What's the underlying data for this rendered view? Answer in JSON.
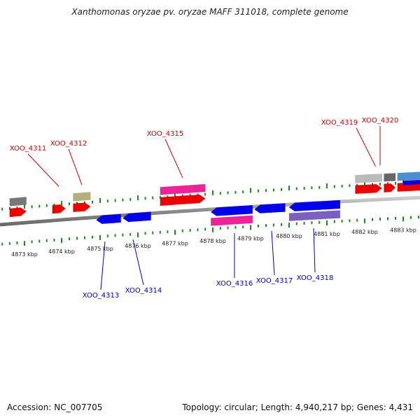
{
  "title": "Xanthomonas oryzae pv. oryzae MAFF 311018, complete genome",
  "footer": {
    "accession": "Accession: NC_007705",
    "summary": "Topology: circular; Length: 4,940,217 bp; Genes: 4,431"
  },
  "scale": {
    "unit": "kbp",
    "major_ticks": [
      {
        "kbp": 4873,
        "label": "4873 kbp"
      },
      {
        "kbp": 4874,
        "label": "4874 kbp"
      },
      {
        "kbp": 4875,
        "label": "4875 kbp"
      },
      {
        "kbp": 4876,
        "label": "4876 kbp"
      },
      {
        "kbp": 4877,
        "label": "4877 kbp"
      },
      {
        "kbp": 4878,
        "label": "4878 kbp"
      },
      {
        "kbp": 4879,
        "label": "4879 kbp"
      },
      {
        "kbp": 4880,
        "label": "4880 kbp"
      },
      {
        "kbp": 4881,
        "label": "4881 kbp"
      },
      {
        "kbp": 4882,
        "label": "4882 kbp"
      },
      {
        "kbp": 4883,
        "label": "4883 kbp"
      }
    ]
  },
  "genes": {
    "forward_labeled": [
      {
        "name": "XOO_4311",
        "start_kbp": 4873.75,
        "end_kbp": 4874.1,
        "color": "#ee0000"
      },
      {
        "name": "XOO_4312",
        "start_kbp": 4874.3,
        "end_kbp": 4874.75,
        "color": "#ee0000"
      },
      {
        "name": "XOO_4315",
        "start_kbp": 4876.6,
        "end_kbp": 4877.8,
        "color": "#ee0000"
      },
      {
        "name": "XOO_4319",
        "start_kbp": 4881.75,
        "end_kbp": 4882.45,
        "color": "#ee0000"
      },
      {
        "name": "XOO_4320",
        "start_kbp": 4882.5,
        "end_kbp": 4882.8,
        "color": "#ee0000"
      }
    ],
    "reverse_labeled": [
      {
        "name": "XOO_4313",
        "start_kbp": 4874.9,
        "end_kbp": 4875.55,
        "color": "#0000ee"
      },
      {
        "name": "XOO_4314",
        "start_kbp": 4875.6,
        "end_kbp": 4876.35,
        "color": "#0000ee"
      },
      {
        "name": "XOO_4316",
        "start_kbp": 4877.95,
        "end_kbp": 4879.05,
        "color": "#0000ee"
      },
      {
        "name": "XOO_4317",
        "start_kbp": 4879.1,
        "end_kbp": 4879.9,
        "color": "#0000ee"
      },
      {
        "name": "XOO_4318",
        "start_kbp": 4880.0,
        "end_kbp": 4881.35,
        "color": "#0000ee"
      }
    ],
    "forward_unlabeled": [
      {
        "start_kbp": 4872.6,
        "end_kbp": 4873.05,
        "color": "#ee0000"
      },
      {
        "start_kbp": 4882.85,
        "end_kbp": 4884.0,
        "color": "#ee0000"
      },
      {
        "start_kbp": 4883.0,
        "end_kbp": 4884.0,
        "color": "#0000ee"
      }
    ]
  },
  "feature_tracks": [
    {
      "track": "cds_forward",
      "start_kbp": 4872.6,
      "end_kbp": 4873.05,
      "color": "#777777"
    },
    {
      "track": "cds_forward",
      "start_kbp": 4874.3,
      "end_kbp": 4874.75,
      "color": "#b5b07a"
    },
    {
      "track": "cds_forward",
      "start_kbp": 4876.6,
      "end_kbp": 4877.8,
      "color": "#ee2299"
    },
    {
      "track": "cds_forward",
      "start_kbp": 4881.75,
      "end_kbp": 4882.45,
      "color": "#bbbbbb"
    },
    {
      "track": "cds_forward",
      "start_kbp": 4882.5,
      "end_kbp": 4882.8,
      "color": "#666666"
    },
    {
      "track": "cds_forward",
      "start_kbp": 4882.85,
      "end_kbp": 4884.0,
      "color": "#4a8fd0"
    },
    {
      "track": "cds_reverse",
      "start_kbp": 4877.95,
      "end_kbp": 4879.05,
      "color": "#ee2299"
    },
    {
      "track": "cds_reverse",
      "start_kbp": 4880.0,
      "end_kbp": 4881.35,
      "color": "#7a5fc0"
    }
  ],
  "colors": {
    "forward": "#ee0000",
    "reverse": "#0000ee",
    "tick": "#228822",
    "backbone": "#888888",
    "label_forward": "#cc0000",
    "label_reverse": "#0000bb"
  }
}
